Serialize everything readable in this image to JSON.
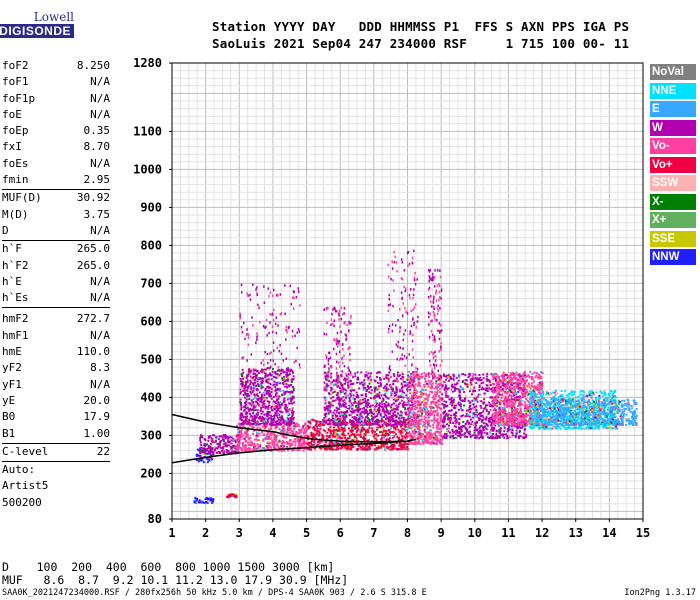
{
  "logo": {
    "top": "Lowell",
    "main": "DIGISONDE"
  },
  "header": {
    "line1": "Station YYYY DAY   DDD HHMMSS P1  FFS S AXN PPS IGA PS",
    "line2": "SaoLuis 2021 Sep04 247 234000 RSF     1 715 100 00- 11"
  },
  "params": {
    "group1": [
      {
        "name": "foF2",
        "value": "8.250"
      },
      {
        "name": "foF1",
        "value": "N/A"
      },
      {
        "name": "foF1p",
        "value": "N/A"
      },
      {
        "name": "foE",
        "value": "N/A"
      },
      {
        "name": "foEp",
        "value": "0.35"
      },
      {
        "name": "fxI",
        "value": "8.70"
      },
      {
        "name": "foEs",
        "value": "N/A"
      },
      {
        "name": "fmin",
        "value": "2.95"
      }
    ],
    "group2": [
      {
        "name": "MUF(D)",
        "value": "30.92"
      },
      {
        "name": "M(D)",
        "value": "3.75"
      },
      {
        "name": "D",
        "value": "N/A"
      }
    ],
    "group3": [
      {
        "name": "h`F",
        "value": "265.0"
      },
      {
        "name": "h`F2",
        "value": "265.0"
      },
      {
        "name": "h`E",
        "value": "N/A"
      },
      {
        "name": "h`Es",
        "value": "N/A"
      }
    ],
    "group4": [
      {
        "name": "hmF2",
        "value": "272.7"
      },
      {
        "name": "hmF1",
        "value": "N/A"
      },
      {
        "name": "hmE",
        "value": "110.0"
      },
      {
        "name": "yF2",
        "value": "8.3"
      },
      {
        "name": "yF1",
        "value": "N/A"
      },
      {
        "name": "yE",
        "value": "20.0"
      },
      {
        "name": "B0",
        "value": "17.9"
      },
      {
        "name": "B1",
        "value": "1.00"
      }
    ],
    "clevel": {
      "name": "C-level",
      "value": "22"
    },
    "auto": [
      "Auto:",
      "Artist5",
      "500200"
    ]
  },
  "legend": [
    {
      "label": "NoVal",
      "color": "#808080"
    },
    {
      "label": "NNE",
      "color": "#00e0ff"
    },
    {
      "label": "E",
      "color": "#38a8ff"
    },
    {
      "label": "W",
      "color": "#b000b0"
    },
    {
      "label": "Vo-",
      "color": "#ff40a0"
    },
    {
      "label": "Vo+",
      "color": "#f00040"
    },
    {
      "label": "SSW",
      "color": "#ffb0b0"
    },
    {
      "label": "X-",
      "color": "#008000"
    },
    {
      "label": "X+",
      "color": "#60b060"
    },
    {
      "label": "SSE",
      "color": "#c8c800"
    },
    {
      "label": "NNW",
      "color": "#2020ff"
    }
  ],
  "footer": {
    "d_row": "D    100  200  400  600  800 1000 1500 3000 [km]",
    "muf_row": "MUF   8.6  8.7  9.2 10.1 11.2 13.0 17.9 30.9 [MHz]",
    "bottom_left": "SAA0K_2021247234000.RSF / 280fx256h 50 kHz 5.0 km / DPS-4 SAA0K 903 / 2.6 S 315.8 E",
    "bottom_right": "Ion2Png 1.3.17"
  },
  "chart_data": {
    "type": "scatter",
    "xlim": [
      1,
      15
    ],
    "ylim": [
      80,
      1280
    ],
    "x_ticks": [
      1,
      2,
      3,
      4,
      5,
      6,
      7,
      8,
      9,
      10,
      11,
      12,
      13,
      14,
      15
    ],
    "y_ticks": [
      80,
      200,
      300,
      400,
      500,
      600,
      700,
      800,
      900,
      1000,
      1100,
      1280
    ],
    "grid": true,
    "profile": {
      "x": [
        1.0,
        2.0,
        3.0,
        4.0,
        5.0,
        6.0,
        7.0,
        8.0,
        8.25
      ],
      "y": [
        228,
        242,
        254,
        262,
        268,
        274,
        279,
        285,
        290
      ]
    },
    "profile_upper": {
      "x": [
        1.0,
        2.0,
        3.0,
        4.0,
        4.5,
        5.2,
        6.0,
        7.0,
        8.0,
        8.25
      ],
      "y": [
        355,
        335,
        320,
        310,
        300,
        290,
        285,
        283,
        285,
        290
      ]
    },
    "echo_clusters": [
      {
        "x_range": [
          1.7,
          2.2
        ],
        "y_range": [
          232,
          268
        ],
        "color": "NNW"
      },
      {
        "x_range": [
          1.8,
          3.0
        ],
        "y_range": [
          255,
          305
        ],
        "color": "W"
      },
      {
        "x_range": [
          2.9,
          5.0
        ],
        "y_range": [
          262,
          335
        ],
        "color": "Vo-"
      },
      {
        "x_range": [
          3.0,
          4.6
        ],
        "y_range": [
          330,
          480
        ],
        "color": "W"
      },
      {
        "x_range": [
          5.0,
          8.0
        ],
        "y_range": [
          265,
          345
        ],
        "color": "Vo+"
      },
      {
        "x_range": [
          5.5,
          8.2
        ],
        "y_range": [
          330,
          470
        ],
        "color": "W"
      },
      {
        "x_range": [
          8.0,
          9.0
        ],
        "y_range": [
          280,
          470
        ],
        "color": "Vo-"
      },
      {
        "x_range": [
          9.0,
          11.5
        ],
        "y_range": [
          295,
          465
        ],
        "color": "W"
      },
      {
        "x_range": [
          10.5,
          12.0
        ],
        "y_range": [
          330,
          470
        ],
        "color": "Vo-"
      },
      {
        "x_range": [
          11.6,
          14.2
        ],
        "y_range": [
          320,
          420
        ],
        "color": "NNE"
      },
      {
        "x_range": [
          11.8,
          14.8
        ],
        "y_range": [
          330,
          400
        ],
        "color": "E"
      },
      {
        "x_range": [
          1.6,
          2.2
        ],
        "y_range": [
          125,
          140
        ],
        "color": "NNW"
      },
      {
        "x_range": [
          2.6,
          2.9
        ],
        "y_range": [
          140,
          148
        ],
        "color": "Vo+"
      }
    ]
  }
}
